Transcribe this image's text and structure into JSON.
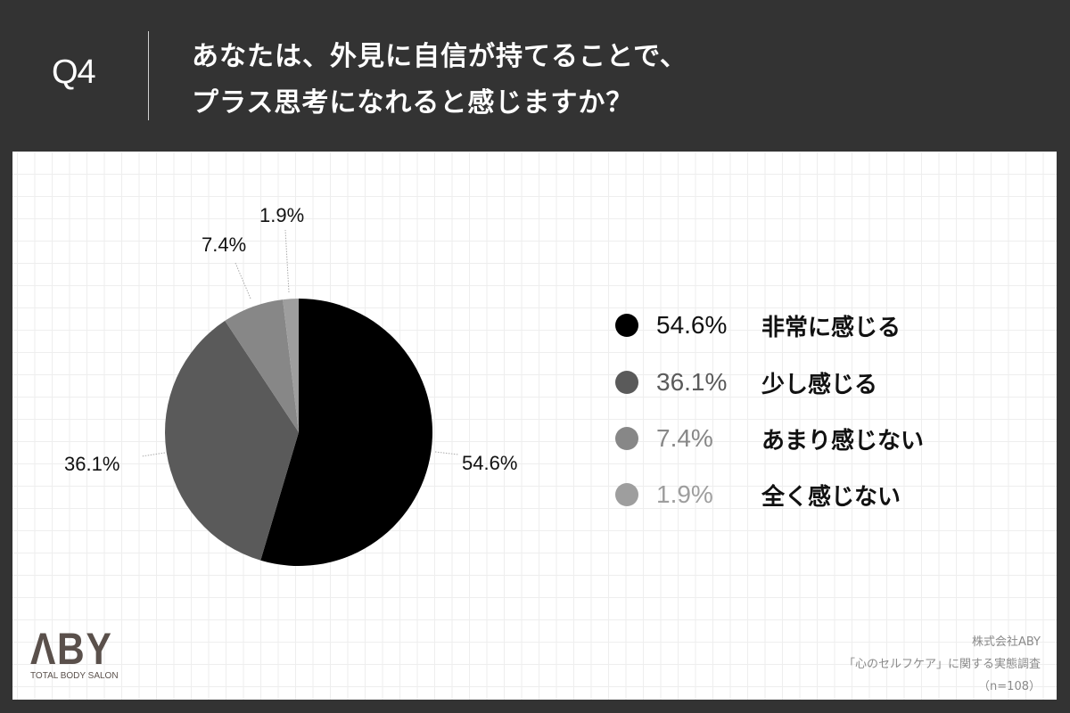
{
  "header": {
    "question_number": "Q4",
    "title_line1": "あなたは、外見に自信が持てることで、",
    "title_line2": "プラス思考になれると感じますか？"
  },
  "chart_data": {
    "type": "pie",
    "title": "あなたは、外見に自信が持てることで、プラス思考になれると感じますか？",
    "categories": [
      "非常に感じる",
      "少し感じる",
      "あまり感じない",
      "全く感じない"
    ],
    "values": [
      54.6,
      36.1,
      7.4,
      1.9
    ],
    "unit": "%",
    "colors": [
      "#000000",
      "#5a5a5a",
      "#878787",
      "#9e9e9e"
    ],
    "start_angle": "12 o'clock",
    "direction": "clockwise",
    "legend_position": "right",
    "sample_size": "n=108"
  },
  "pie_labels": [
    {
      "text": "54.6%"
    },
    {
      "text": "36.1%"
    },
    {
      "text": "7.4%"
    },
    {
      "text": "1.9%"
    }
  ],
  "legend": [
    {
      "pct": "54.6%",
      "label": "非常に感じる",
      "color": "#000000",
      "pct_color": "#111111"
    },
    {
      "pct": "36.1%",
      "label": "少し感じる",
      "color": "#5a5a5a",
      "pct_color": "#5a5a5a"
    },
    {
      "pct": "7.4%",
      "label": "あまり感じない",
      "color": "#878787",
      "pct_color": "#878787"
    },
    {
      "pct": "1.9%",
      "label": "全く感じない",
      "color": "#9e9e9e",
      "pct_color": "#9e9e9e"
    }
  ],
  "logo": {
    "mark": "ΛBY",
    "subtitle": "TOTAL BODY SALON"
  },
  "source": {
    "line1": "株式会社ABY",
    "line2": "「心のセルフケア」に関する実態調査",
    "line3": "（n=108）"
  }
}
